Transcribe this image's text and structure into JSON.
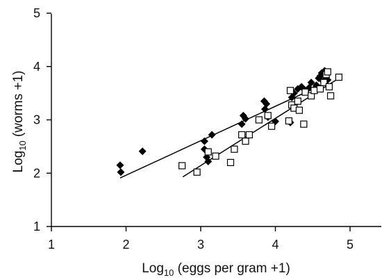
{
  "chart_data": {
    "type": "scatter",
    "title": "",
    "xlabel_prefix": "Log",
    "xlabel_sub": "10",
    "xlabel_rest": " (eggs per gram +1)",
    "ylabel_prefix": "Log",
    "ylabel_sub": "10",
    "ylabel_rest": " (worms +1)",
    "xlim": [
      1,
      5.4
    ],
    "ylim": [
      1,
      5
    ],
    "xticks": [
      1,
      2,
      3,
      4,
      5
    ],
    "yticks": [
      1,
      2,
      3,
      4,
      5
    ],
    "grid": false,
    "series": [
      {
        "marker": "filled-diamond",
        "points": [
          [
            1.92,
            2.15
          ],
          [
            1.93,
            2.02
          ],
          [
            2.22,
            2.41
          ],
          [
            3.05,
            2.6
          ],
          [
            3.05,
            2.45
          ],
          [
            3.08,
            2.3
          ],
          [
            3.1,
            2.22
          ],
          [
            3.15,
            2.72
          ],
          [
            3.55,
            2.92
          ],
          [
            3.57,
            3.08
          ],
          [
            3.6,
            3.02
          ],
          [
            3.85,
            3.35
          ],
          [
            3.86,
            3.2
          ],
          [
            3.88,
            3.3
          ],
          [
            3.9,
            3.05
          ],
          [
            4.0,
            2.97
          ],
          [
            4.2,
            2.95
          ],
          [
            4.22,
            3.42
          ],
          [
            4.25,
            3.5
          ],
          [
            4.3,
            3.58
          ],
          [
            4.35,
            3.62
          ],
          [
            4.4,
            3.55
          ],
          [
            4.45,
            3.6
          ],
          [
            4.48,
            3.7
          ],
          [
            4.52,
            3.58
          ],
          [
            4.55,
            3.65
          ],
          [
            4.58,
            3.78
          ],
          [
            4.6,
            3.82
          ],
          [
            4.62,
            3.88
          ],
          [
            4.64,
            3.72
          ],
          [
            4.66,
            3.92
          ],
          [
            4.68,
            3.8
          ],
          [
            4.7,
            3.75
          ]
        ],
        "fit_line": [
          [
            1.92,
            1.91
          ],
          [
            4.72,
            3.72
          ]
        ]
      },
      {
        "marker": "open-square",
        "points": [
          [
            2.75,
            2.14
          ],
          [
            2.95,
            2.02
          ],
          [
            3.1,
            2.4
          ],
          [
            3.2,
            2.32
          ],
          [
            3.4,
            2.2
          ],
          [
            3.45,
            2.45
          ],
          [
            3.55,
            2.72
          ],
          [
            3.6,
            2.6
          ],
          [
            3.65,
            2.72
          ],
          [
            3.78,
            3.0
          ],
          [
            3.9,
            3.08
          ],
          [
            3.95,
            2.88
          ],
          [
            4.18,
            2.98
          ],
          [
            4.2,
            3.55
          ],
          [
            4.22,
            3.28
          ],
          [
            4.25,
            3.22
          ],
          [
            4.3,
            3.35
          ],
          [
            4.32,
            3.18
          ],
          [
            4.38,
            2.92
          ],
          [
            4.4,
            3.52
          ],
          [
            4.48,
            3.45
          ],
          [
            4.52,
            3.55
          ],
          [
            4.6,
            3.58
          ],
          [
            4.65,
            3.7
          ],
          [
            4.68,
            3.85
          ],
          [
            4.7,
            3.9
          ],
          [
            4.72,
            3.62
          ],
          [
            4.74,
            3.45
          ],
          [
            4.85,
            3.8
          ]
        ],
        "fit_line": [
          [
            2.76,
            1.93
          ],
          [
            4.85,
            3.78
          ]
        ]
      }
    ]
  }
}
